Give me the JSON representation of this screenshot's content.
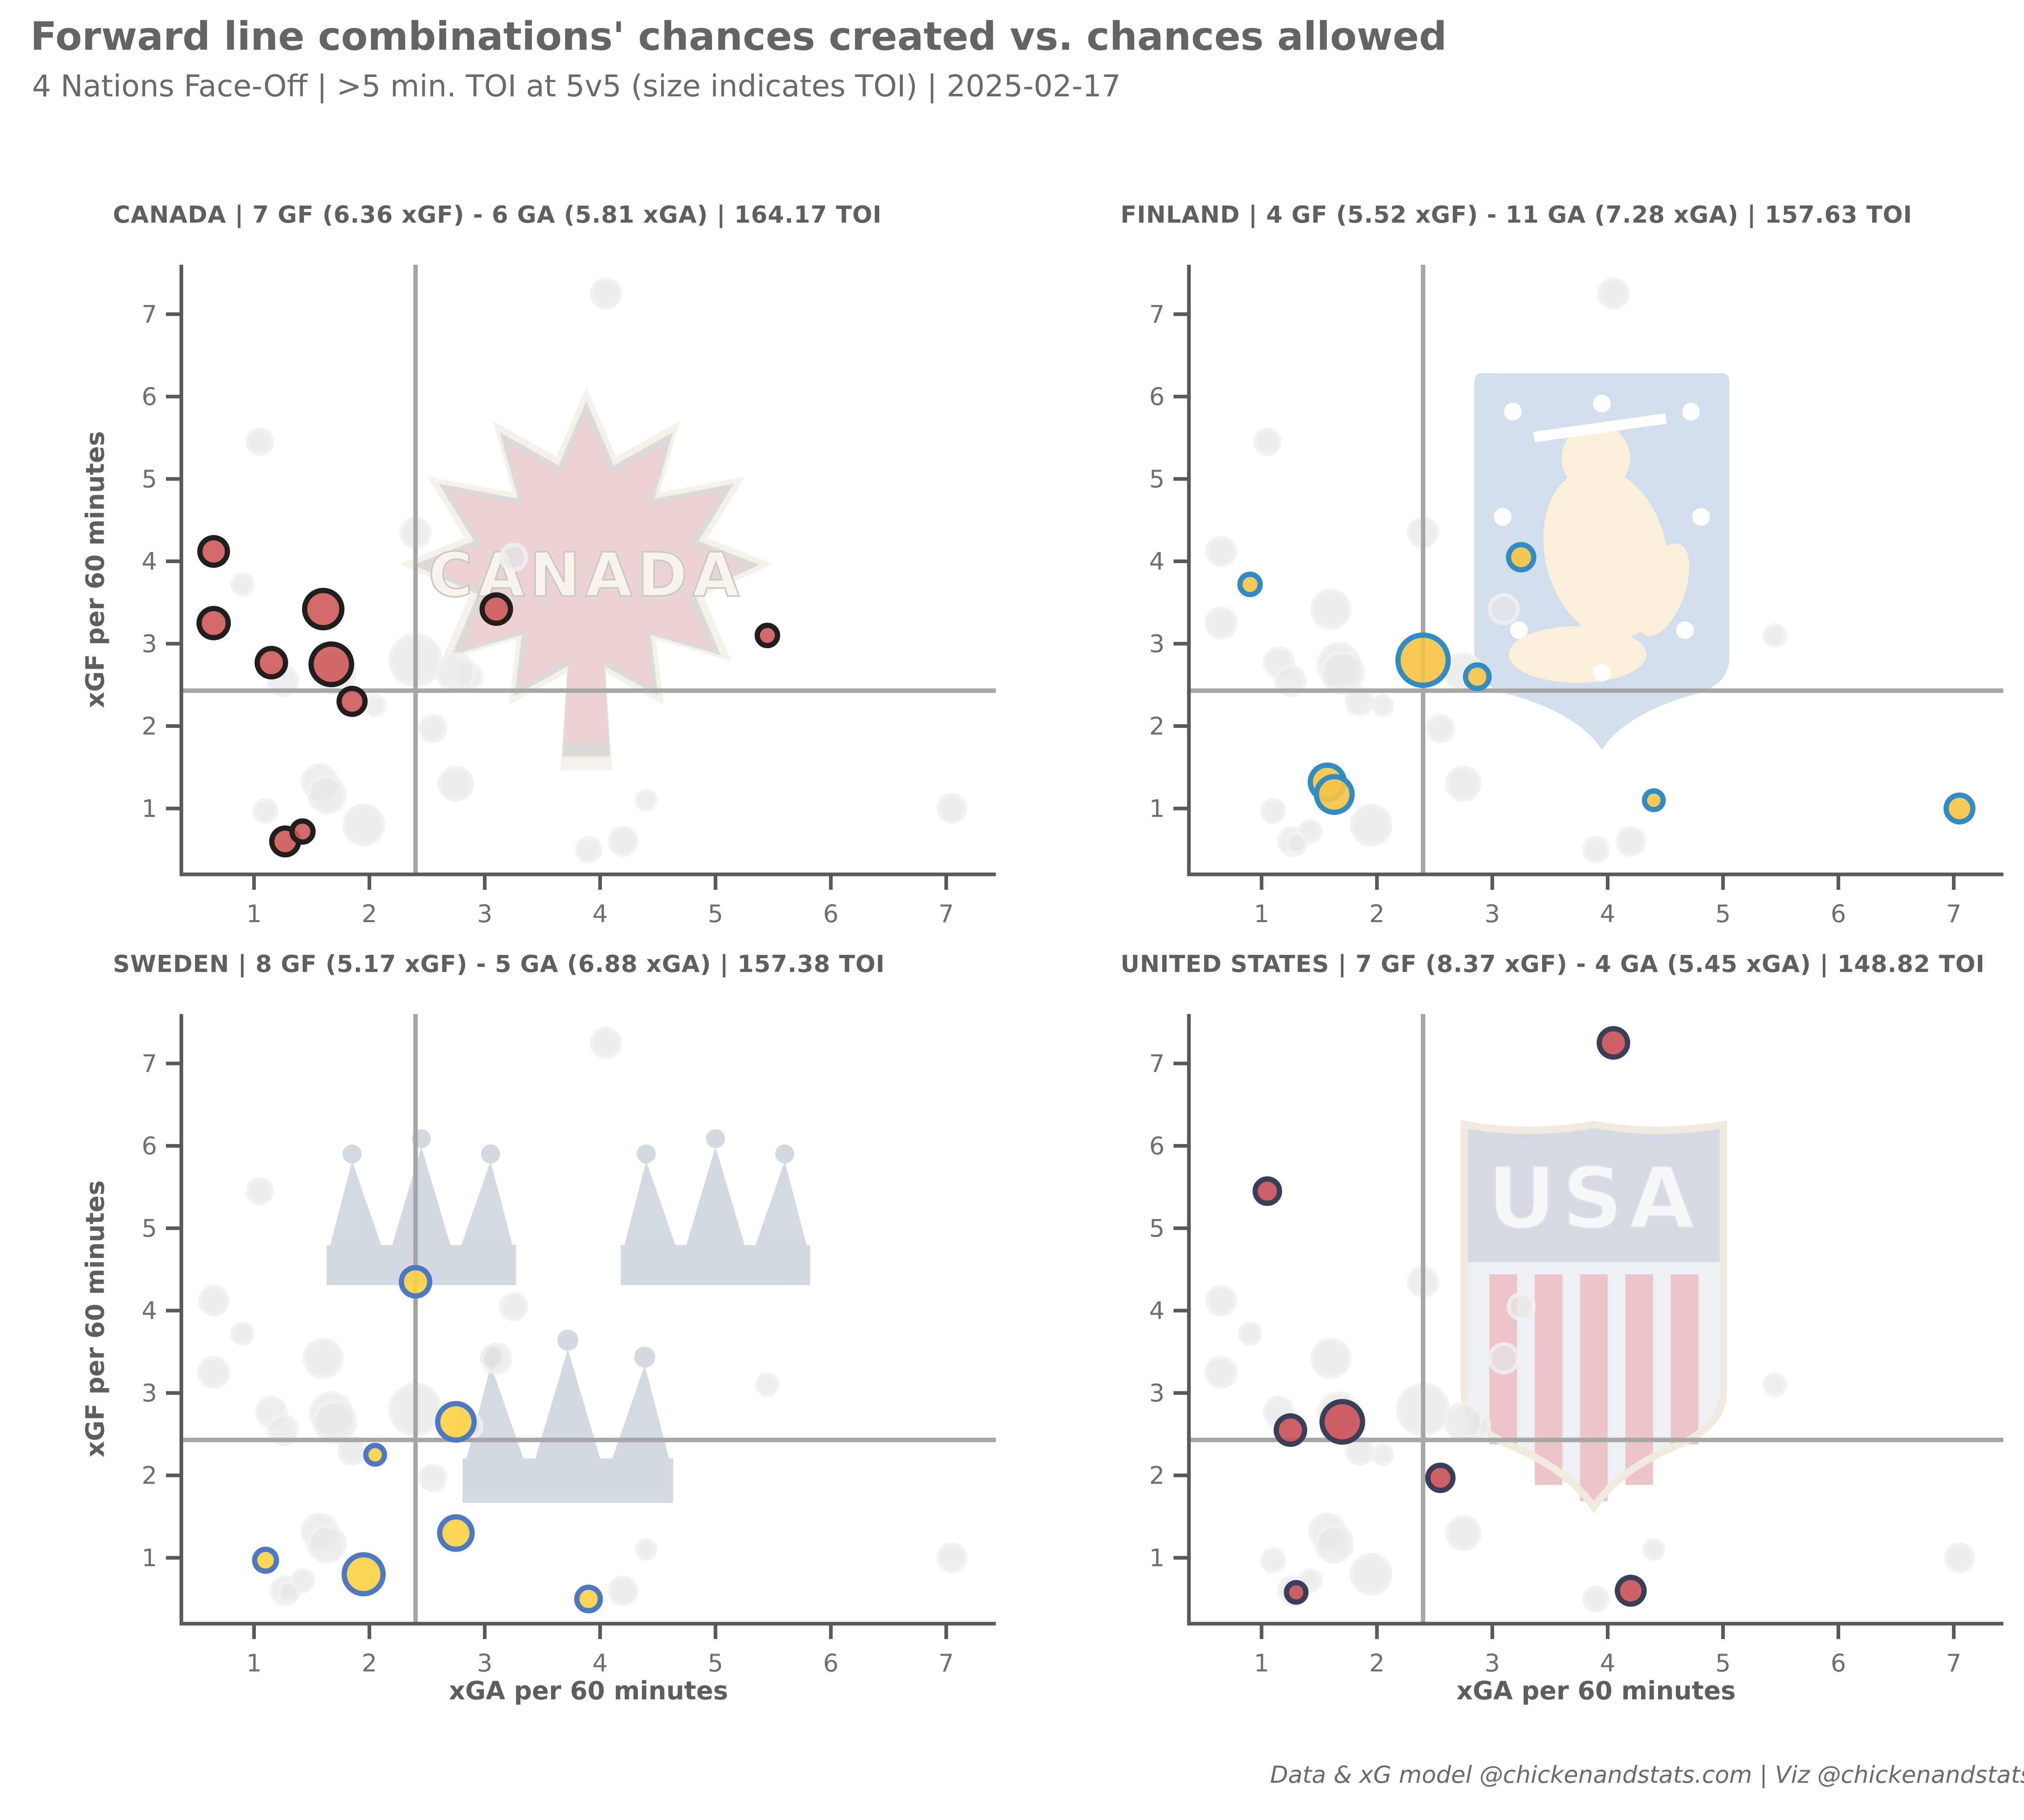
{
  "header": {
    "title": "Forward line combinations' chances created vs. chances allowed",
    "subtitle": "4 Nations Face-Off | >5 min. TOI at 5v5 (size indicates TOI) | 2025-02-17"
  },
  "footer": {
    "credit": "Data & xG model @chickenandstats.com | Viz @chickenandstats.com"
  },
  "axes": {
    "x_label": "xGA per 60 minutes",
    "y_label": "xGF per 60 minutes",
    "x_ticks": [
      1,
      2,
      3,
      4,
      5,
      6,
      7
    ],
    "y_ticks": [
      1,
      2,
      3,
      4,
      5,
      6,
      7
    ],
    "x_domain": [
      0.37,
      7.43
    ],
    "y_domain": [
      0.2,
      7.6
    ],
    "ref_x": 2.4,
    "ref_y": 2.43
  },
  "palette": {
    "axis": "#595959",
    "tick_label": "#6f6f6f",
    "ref_line": "#a6a6a6",
    "ghost_fill": "#e6e6e6",
    "ghost_stroke": "#f0f0f0"
  },
  "chart_data": [
    {
      "type": "scatter",
      "team": "CANADA",
      "title": "CANADA | 7 GF (6.36 xGF) - 6 GA (5.81 xGA) | 164.17 TOI",
      "logo": "canada-maple-leaf",
      "logo_text": "CANADA",
      "logo_colors": {
        "cream": "#f3efe4",
        "gray": "#d6d6d6",
        "leaf": "#f2d0d2",
        "text": "#f8f4ea",
        "text_stroke": "#c9c9c9"
      },
      "marker_fill": "#cd5a5a",
      "marker_stroke": "#221e1e",
      "points": [
        {
          "xga": 0.65,
          "xgf": 4.12,
          "toi_r": 34
        },
        {
          "xga": 0.65,
          "xgf": 3.25,
          "toi_r": 36
        },
        {
          "xga": 1.15,
          "xgf": 2.77,
          "toi_r": 35
        },
        {
          "xga": 1.6,
          "xgf": 3.42,
          "toi_r": 46
        },
        {
          "xga": 1.67,
          "xgf": 2.75,
          "toi_r": 50
        },
        {
          "xga": 1.85,
          "xgf": 2.3,
          "toi_r": 32
        },
        {
          "xga": 3.1,
          "xgf": 3.42,
          "toi_r": 35
        },
        {
          "xga": 5.45,
          "xgf": 3.1,
          "toi_r": 25
        },
        {
          "xga": 1.27,
          "xgf": 0.6,
          "toi_r": 33
        },
        {
          "xga": 1.42,
          "xgf": 0.72,
          "toi_r": 26
        }
      ]
    },
    {
      "type": "scatter",
      "team": "FINLAND",
      "title": "FINLAND | 4 GF (5.52 xGF) - 11 GA (7.28 xGA) | 157.63 TOI",
      "logo": "finland-shield",
      "logo_text": "",
      "logo_colors": {
        "shield": "#b7c9e0",
        "lion": "#f8e7c0",
        "rosette": "#fdfdfd",
        "sword": "#ffffff"
      },
      "marker_fill": "#f6c445",
      "marker_stroke": "#338bc4",
      "points": [
        {
          "xga": 0.9,
          "xgf": 3.72,
          "toi_r": 25
        },
        {
          "xga": 3.25,
          "xgf": 4.05,
          "toi_r": 31
        },
        {
          "xga": 2.4,
          "xgf": 2.8,
          "toi_r": 62
        },
        {
          "xga": 2.87,
          "xgf": 2.6,
          "toi_r": 29
        },
        {
          "xga": 1.57,
          "xgf": 1.32,
          "toi_r": 42
        },
        {
          "xga": 1.63,
          "xgf": 1.17,
          "toi_r": 44
        },
        {
          "xga": 4.4,
          "xgf": 1.1,
          "toi_r": 23
        },
        {
          "xga": 7.05,
          "xgf": 1.0,
          "toi_r": 33
        }
      ]
    },
    {
      "type": "scatter",
      "team": "SWEDEN",
      "title": "SWEDEN | 8 GF (5.17 xGF) - 5 GA (6.88 xGA) | 157.38 TOI",
      "logo": "sweden-three-crowns",
      "logo_text": "",
      "logo_colors": {
        "crown": "#ccd3dc"
      },
      "marker_fill": "#fad141",
      "marker_stroke": "#4d78c4",
      "points": [
        {
          "xga": 2.4,
          "xgf": 4.35,
          "toi_r": 35
        },
        {
          "xga": 2.75,
          "xgf": 2.65,
          "toi_r": 45
        },
        {
          "xga": 2.05,
          "xgf": 2.25,
          "toi_r": 23
        },
        {
          "xga": 2.75,
          "xgf": 1.3,
          "toi_r": 40
        },
        {
          "xga": 1.1,
          "xgf": 0.97,
          "toi_r": 27
        },
        {
          "xga": 1.95,
          "xgf": 0.8,
          "toi_r": 48
        },
        {
          "xga": 3.9,
          "xgf": 0.5,
          "toi_r": 29
        }
      ]
    },
    {
      "type": "scatter",
      "team": "UNITED STATES",
      "title": "UNITED STATES | 7 GF (8.37 xGF) - 4 GA (5.45 xGA) | 148.82 TOI",
      "logo": "usa-shield",
      "logo_text": "USA",
      "logo_colors": {
        "shield": "#e6eaef",
        "band": "#c6cdda",
        "stripe": "#e8b0b6",
        "border": "#ece4d2",
        "text": "#f4f5f7",
        "text_stroke": "#cfd3da"
      },
      "marker_fill": "#c95058",
      "marker_stroke": "#3a3f58",
      "points": [
        {
          "xga": 4.05,
          "xgf": 7.25,
          "toi_r": 35
        },
        {
          "xga": 1.05,
          "xgf": 5.45,
          "toi_r": 30
        },
        {
          "xga": 1.25,
          "xgf": 2.55,
          "toi_r": 35
        },
        {
          "xga": 1.7,
          "xgf": 2.65,
          "toi_r": 50
        },
        {
          "xga": 2.55,
          "xgf": 1.97,
          "toi_r": 31
        },
        {
          "xga": 1.3,
          "xgf": 0.58,
          "toi_r": 24
        },
        {
          "xga": 4.2,
          "xgf": 0.6,
          "toi_r": 33
        }
      ]
    }
  ]
}
